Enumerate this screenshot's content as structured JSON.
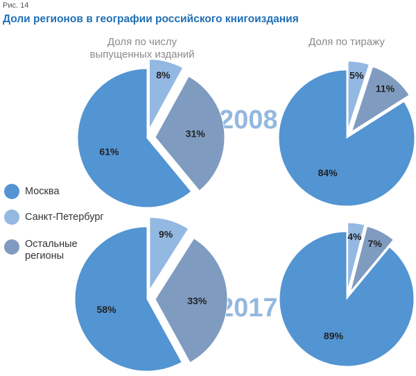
{
  "figure_label": "Рис. 14",
  "title": "Доли регионов в географии российского книгоиздания",
  "chart_data": {
    "type": "pie",
    "title": "Доли регионов в географии российского книгоиздания",
    "column_headers": [
      "Доля по числу\nвыпущенных изданий",
      "Доля по тиражу"
    ],
    "legend_position": "left",
    "categories": [
      {
        "name": "Москва",
        "color": "#5394d2"
      },
      {
        "name": "Санкт-Петербург",
        "color": "#93b8e2"
      },
      {
        "name": "Остальные\nрегионы",
        "color": "#7f9cc0"
      }
    ],
    "years": [
      {
        "year": "2008",
        "pies": [
          {
            "measure": "Доля по числу выпущенных изданий",
            "values": [
              61,
              8,
              31
            ],
            "labels": [
              "61%",
              "8%",
              "31%"
            ]
          },
          {
            "measure": "Доля по тиражу",
            "values": [
              84,
              5,
              11
            ],
            "labels": [
              "84%",
              "5%",
              "11%"
            ]
          }
        ]
      },
      {
        "year": "2017",
        "pies": [
          {
            "measure": "Доля по числу выпущенных изданий",
            "values": [
              58,
              9,
              33
            ],
            "labels": [
              "58%",
              "9%",
              "33%"
            ]
          },
          {
            "measure": "Доля по тиражу",
            "values": [
              89,
              4,
              7
            ],
            "labels": [
              "89%",
              "4%",
              "7%"
            ]
          }
        ]
      }
    ]
  }
}
